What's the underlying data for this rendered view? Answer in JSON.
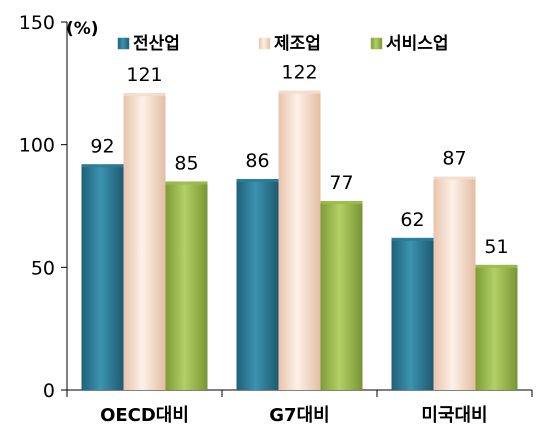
{
  "chart_data": {
    "type": "bar",
    "unit_label": "(%)",
    "categories": [
      "OECD대비",
      "G7대비",
      "미국대비"
    ],
    "series": [
      {
        "name": "전산업",
        "values": [
          92,
          86,
          62
        ],
        "color": "#2e7c98"
      },
      {
        "name": "제조업",
        "values": [
          121,
          122,
          87
        ],
        "color": "#f6dccb"
      },
      {
        "name": "서비스업",
        "values": [
          85,
          77,
          51
        ],
        "color": "#9bbb4d"
      }
    ],
    "ylim": [
      0,
      150
    ],
    "yticks": [
      0,
      50,
      100,
      150
    ],
    "legend_position": "top",
    "grid": false
  }
}
